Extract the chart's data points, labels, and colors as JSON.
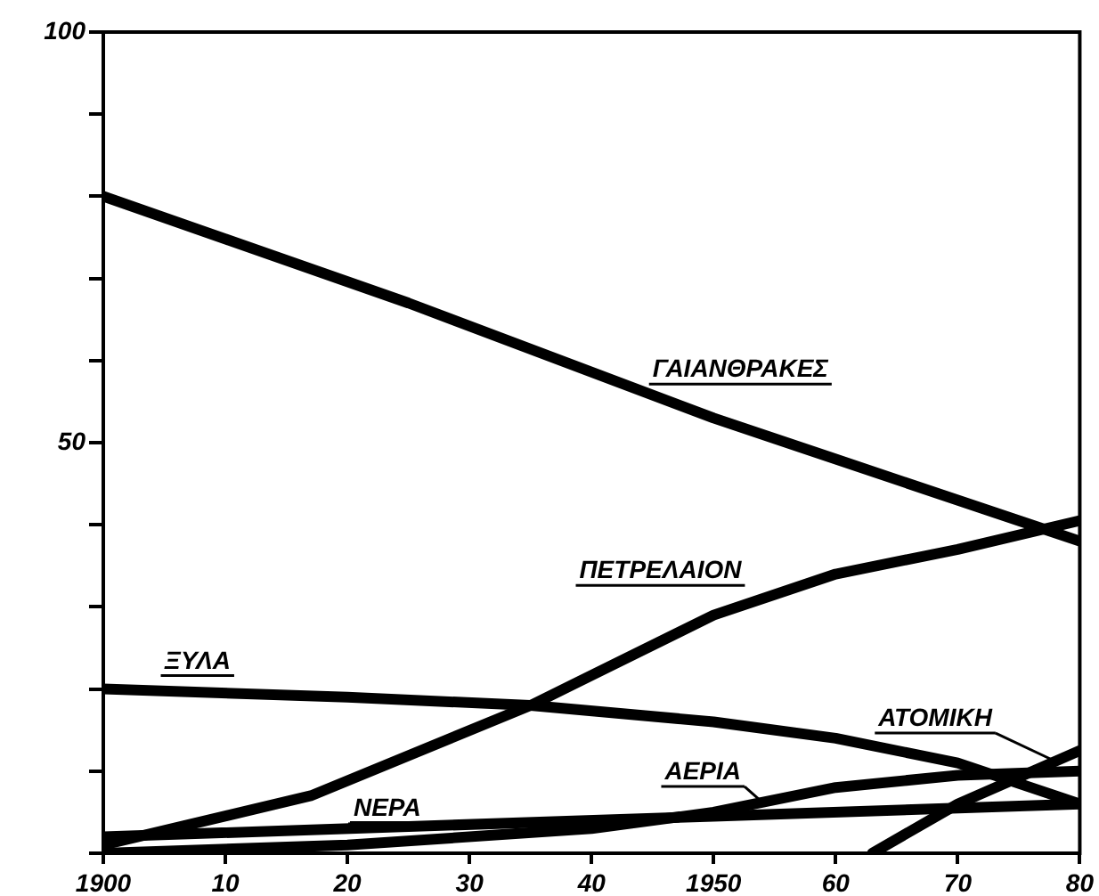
{
  "chart_data": {
    "type": "line",
    "xlim": [
      1900,
      1980
    ],
    "xticks": [
      1900,
      {
        "value": 1910,
        "label": "10"
      },
      {
        "value": 1920,
        "label": "20"
      },
      {
        "value": 1930,
        "label": "30"
      },
      {
        "value": 1940,
        "label": "40"
      },
      1950,
      {
        "value": 1960,
        "label": "60"
      },
      {
        "value": 1970,
        "label": "70"
      },
      {
        "value": 1980,
        "label": "80"
      }
    ],
    "ylim": [
      0,
      100
    ],
    "yticks": [
      {
        "value": 0,
        "label": null
      },
      {
        "value": 10,
        "label": null
      },
      {
        "value": 20,
        "label": null
      },
      {
        "value": 30,
        "label": null
      },
      {
        "value": 40,
        "label": null
      },
      50,
      {
        "value": 60,
        "label": null
      },
      {
        "value": 70,
        "label": null
      },
      {
        "value": 80,
        "label": null
      },
      {
        "value": 90,
        "label": null
      },
      100
    ],
    "grid": false,
    "legend": false,
    "marker": "none",
    "line_style": "solid",
    "series": [
      {
        "name": "ΓΑΙΑΝΘΡΑΚΕΣ",
        "color": "#000000",
        "x": [
          1900,
          1925,
          1950,
          1977,
          1980
        ],
        "values": [
          80,
          67,
          53,
          39.5,
          38
        ]
      },
      {
        "name": "ΠΕΤΡΕΛΑΙΟΝ",
        "color": "#000000",
        "x": [
          1900,
          1917,
          1935,
          1950,
          1960,
          1970,
          1980
        ],
        "values": [
          1,
          7,
          18,
          29,
          34,
          37,
          40.5
        ]
      },
      {
        "name": "ΞΥΛΑ",
        "color": "#000000",
        "x": [
          1900,
          1920,
          1935,
          1950,
          1960,
          1970,
          1980
        ],
        "values": [
          20,
          19,
          18,
          16,
          14,
          11,
          6
        ]
      },
      {
        "name": "ΝΕΡΑ",
        "color": "#000000",
        "x": [
          1900,
          1950,
          1980
        ],
        "values": [
          2,
          4.5,
          6
        ]
      },
      {
        "name": "ΑΕΡΙΑ",
        "color": "#000000",
        "x": [
          1900,
          1920,
          1940,
          1950,
          1960,
          1970,
          1980
        ],
        "values": [
          0,
          1,
          3,
          5,
          8,
          9.5,
          10
        ]
      },
      {
        "name": "ΑΤΟΜΙΚΗ",
        "color": "#000000",
        "x": [
          1963,
          1970,
          1980
        ],
        "values": [
          0,
          6,
          12.5
        ]
      }
    ]
  }
}
